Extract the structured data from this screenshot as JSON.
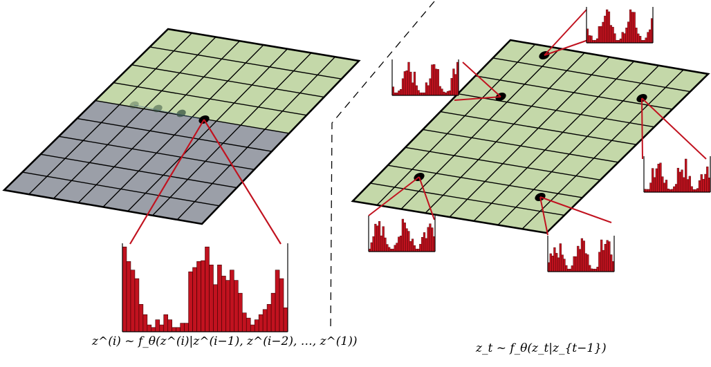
{
  "left_panel": {
    "grid_rows": 9,
    "grid_cols": 8,
    "observed_rows": 4,
    "colors": {
      "observed": "#c4d8a9",
      "unobserved": "#9b9fa8",
      "grid_line": "#000000"
    },
    "formula": "z^(i) ~ f_θ(z^(i)|z^(i−1), z^(i−2), …, z^(1))",
    "histogram_values": [
      0.99,
      0.82,
      0.72,
      0.62,
      0.32,
      0.2,
      0.08,
      0.05,
      0.14,
      0.08,
      0.2,
      0.14,
      0.05,
      0.05,
      0.1,
      0.1,
      0.7,
      0.75,
      0.82,
      0.83,
      0.99,
      0.78,
      0.55,
      0.78,
      0.65,
      0.6,
      0.72,
      0.6,
      0.45,
      0.22,
      0.16,
      0.08,
      0.14,
      0.2,
      0.26,
      0.32,
      0.45,
      0.72,
      0.62,
      0.28
    ]
  },
  "right_panel": {
    "grid_rows": 9,
    "grid_cols": 8,
    "colors": {
      "field": "#c4d8a9",
      "grid_line": "#000000"
    },
    "formula": "z_t ~ f_θ(z_t|z_{t−1})"
  },
  "accent_color": "#c1121f"
}
